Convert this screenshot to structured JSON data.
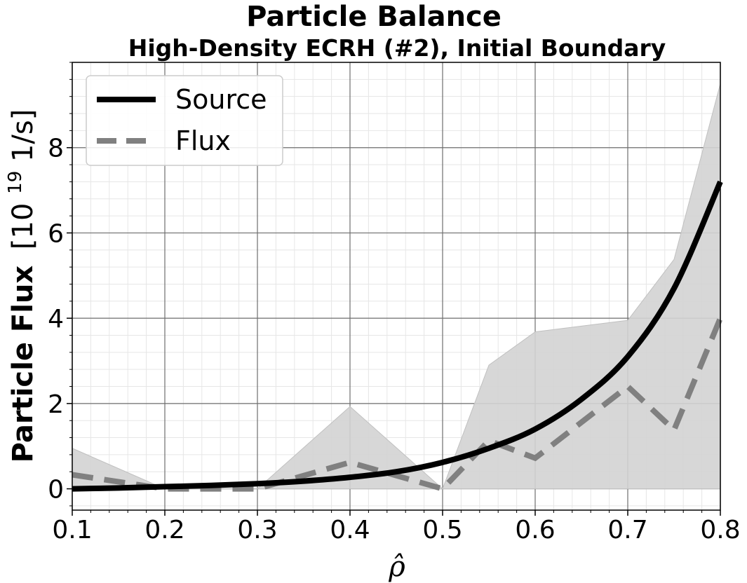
{
  "chart_data": {
    "type": "line",
    "title": "Particle Balance",
    "subtitle": "High-Density ECRH (#2), Initial Boundary",
    "xlabel": "ρ̂",
    "ylabel": {
      "bold": "Particle Flux",
      "unit_prefix": "[10",
      "unit_exponent": "19",
      "unit_suffix": " 1/s]"
    },
    "xlim": [
      0.1,
      0.8
    ],
    "ylim": [
      -0.5,
      10.0
    ],
    "xticks": [
      0.1,
      0.2,
      0.3,
      0.4,
      0.5,
      0.6,
      0.7,
      0.8
    ],
    "xtick_labels": [
      "0.1",
      "0.2",
      "0.3",
      "0.4",
      "0.5",
      "0.6",
      "0.7",
      "0.8"
    ],
    "yticks": [
      0,
      2,
      4,
      6,
      8
    ],
    "ytick_labels": [
      "0",
      "2",
      "4",
      "6",
      "8"
    ],
    "grid": true,
    "legend_position": "top-left",
    "series": [
      {
        "name": "Source",
        "style": "solid",
        "color": "#000000",
        "x": [
          0.1,
          0.15,
          0.2,
          0.25,
          0.3,
          0.35,
          0.4,
          0.45,
          0.5,
          0.55,
          0.6,
          0.65,
          0.7,
          0.75,
          0.8
        ],
        "y": [
          0.0,
          0.02,
          0.05,
          0.08,
          0.12,
          0.18,
          0.27,
          0.4,
          0.62,
          0.95,
          1.4,
          2.1,
          3.1,
          4.7,
          7.2
        ]
      },
      {
        "name": "Flux",
        "style": "dashed",
        "color": "#808080",
        "x": [
          0.1,
          0.2,
          0.3,
          0.4,
          0.5,
          0.55,
          0.6,
          0.7,
          0.75,
          0.8
        ],
        "y": [
          0.33,
          0.0,
          0.0,
          0.62,
          0.0,
          1.13,
          0.72,
          2.4,
          1.38,
          4.0
        ]
      }
    ],
    "band": {
      "color": "#d3d3d3",
      "x": [
        0.1,
        0.2,
        0.3,
        0.4,
        0.5,
        0.55,
        0.6,
        0.7,
        0.75,
        0.8
      ],
      "upper": [
        0.95,
        0.0,
        0.0,
        1.93,
        0.0,
        2.9,
        3.68,
        3.95,
        5.38,
        9.5
      ],
      "lower": [
        0.0,
        0.0,
        0.0,
        0.0,
        0.0,
        0.0,
        0.0,
        0.0,
        0.0,
        0.0
      ]
    }
  }
}
